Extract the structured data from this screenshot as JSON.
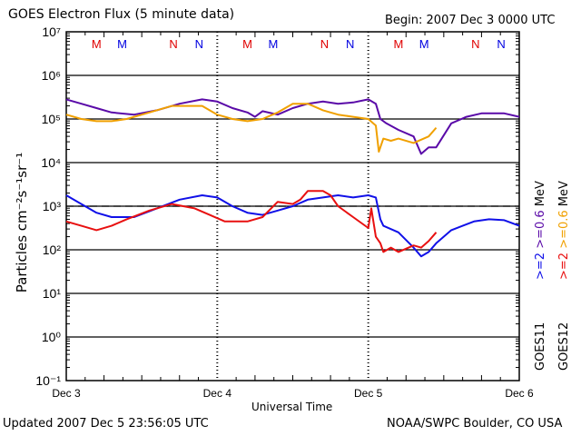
{
  "chart_data": {
    "type": "line",
    "title": "GOES Electron Flux (5 minute data)",
    "begin_label": "Begin: 2007 Dec 3 0000 UTC",
    "xlabel": "Universal Time",
    "ylabel": "Particles cm⁻²s⁻¹sr⁻¹",
    "yscale": "log",
    "ylim_exp": [
      -1,
      7
    ],
    "ytick_labels": [
      "10⁷",
      "10⁶",
      "10⁵",
      "10⁴",
      "10³",
      "10²",
      "10¹",
      "10⁰",
      "10⁻¹"
    ],
    "xlim_days": [
      0,
      3
    ],
    "xtick_labels": [
      "Dec 3",
      "Dec 4",
      "Dec 5",
      "Dec 6"
    ],
    "threshold_exp": 3,
    "grid": "horizontal at decades",
    "markers": [
      {
        "label": "M",
        "x": 0.2,
        "color": "#e00000"
      },
      {
        "label": "M",
        "x": 0.37,
        "color": "#0000e0"
      },
      {
        "label": "N",
        "x": 0.71,
        "color": "#e00000"
      },
      {
        "label": "N",
        "x": 0.88,
        "color": "#0000e0"
      },
      {
        "label": "M",
        "x": 1.2,
        "color": "#e00000"
      },
      {
        "label": "M",
        "x": 1.37,
        "color": "#0000e0"
      },
      {
        "label": "N",
        "x": 1.71,
        "color": "#e00000"
      },
      {
        "label": "N",
        "x": 1.88,
        "color": "#0000e0"
      },
      {
        "label": "M",
        "x": 2.2,
        "color": "#e00000"
      },
      {
        "label": "M",
        "x": 2.37,
        "color": "#0000e0"
      },
      {
        "label": "N",
        "x": 2.71,
        "color": "#e00000"
      },
      {
        "label": "N",
        "x": 2.88,
        "color": "#0000e0"
      }
    ],
    "series": [
      {
        "name": "GOES11 >=0.6 MeV",
        "color": "#5a0aa8",
        "x": [
          0,
          0.1,
          0.2,
          0.3,
          0.45,
          0.6,
          0.75,
          0.9,
          1.0,
          1.1,
          1.2,
          1.25,
          1.3,
          1.4,
          1.5,
          1.6,
          1.7,
          1.8,
          1.9,
          2.0,
          2.05,
          2.08,
          2.12,
          2.2,
          2.3,
          2.35,
          2.4,
          2.45,
          2.55,
          2.65,
          2.75,
          2.9,
          3.0
        ],
        "y_exp": [
          5.45,
          5.35,
          5.25,
          5.15,
          5.1,
          5.2,
          5.35,
          5.45,
          5.4,
          5.25,
          5.15,
          5.05,
          5.18,
          5.1,
          5.25,
          5.35,
          5.4,
          5.35,
          5.38,
          5.45,
          5.35,
          5.0,
          4.9,
          4.75,
          4.6,
          4.2,
          4.35,
          4.35,
          4.9,
          5.05,
          5.13,
          5.13,
          5.05
        ]
      },
      {
        "name": "GOES12 >=0.6 MeV",
        "color": "#f0a000",
        "x": [
          0,
          0.1,
          0.2,
          0.3,
          0.4,
          0.55,
          0.7,
          0.9,
          1.0,
          1.1,
          1.2,
          1.3,
          1.4,
          1.5,
          1.6,
          1.7,
          1.8,
          1.9,
          2.0,
          2.05,
          2.07,
          2.1,
          2.15,
          2.2,
          2.3,
          2.4,
          2.45
        ],
        "y_exp": [
          5.1,
          5.0,
          4.95,
          4.95,
          5.0,
          5.15,
          5.3,
          5.3,
          5.1,
          5.0,
          4.95,
          5.0,
          5.15,
          5.35,
          5.35,
          5.2,
          5.1,
          5.05,
          5.0,
          4.85,
          4.25,
          4.55,
          4.5,
          4.55,
          4.45,
          4.6,
          4.8
        ]
      },
      {
        "name": "GOES11 >=2 MeV",
        "color": "#1010e8",
        "x": [
          0,
          0.1,
          0.2,
          0.3,
          0.45,
          0.6,
          0.75,
          0.9,
          1.0,
          1.1,
          1.2,
          1.3,
          1.4,
          1.5,
          1.6,
          1.7,
          1.8,
          1.9,
          2.0,
          2.05,
          2.08,
          2.1,
          2.2,
          2.3,
          2.35,
          2.4,
          2.45,
          2.55,
          2.7,
          2.8,
          2.9,
          3.0
        ],
        "y_exp": [
          3.25,
          3.05,
          2.85,
          2.75,
          2.75,
          2.95,
          3.15,
          3.25,
          3.2,
          3.0,
          2.85,
          2.8,
          2.9,
          3.0,
          3.15,
          3.2,
          3.25,
          3.2,
          3.25,
          3.2,
          2.7,
          2.55,
          2.4,
          2.05,
          1.85,
          1.95,
          2.15,
          2.45,
          2.65,
          2.7,
          2.68,
          2.55
        ]
      },
      {
        "name": "GOES12 >=2 MeV",
        "color": "#e81010",
        "x": [
          0,
          0.1,
          0.2,
          0.3,
          0.4,
          0.55,
          0.7,
          0.85,
          0.95,
          1.05,
          1.2,
          1.3,
          1.4,
          1.5,
          1.55,
          1.6,
          1.7,
          1.75,
          1.8,
          1.9,
          2.0,
          2.02,
          2.05,
          2.08,
          2.1,
          2.15,
          2.2,
          2.3,
          2.35,
          2.4,
          2.45
        ],
        "y_exp": [
          2.65,
          2.55,
          2.45,
          2.55,
          2.7,
          2.9,
          3.05,
          2.95,
          2.8,
          2.65,
          2.65,
          2.75,
          3.1,
          3.05,
          3.15,
          3.35,
          3.35,
          3.25,
          3.0,
          2.75,
          2.5,
          2.95,
          2.3,
          2.15,
          1.95,
          2.05,
          1.95,
          2.1,
          2.05,
          2.2,
          2.4
        ]
      }
    ],
    "legend": {
      "col1": [
        {
          "text": ">=2",
          "color": "#1010e8"
        },
        {
          "text": ">=0.6",
          "color": "#5a0aa8"
        },
        {
          "text": "MeV",
          "color": "#000000"
        }
      ],
      "col2": [
        {
          "text": ">=2",
          "color": "#e81010"
        },
        {
          "text": ">=0.6",
          "color": "#f0a000"
        },
        {
          "text": "MeV",
          "color": "#000000"
        }
      ],
      "sat1": "GOES11",
      "sat2": "GOES12",
      "placement": "right"
    }
  },
  "footer": {
    "updated": "Updated 2007 Dec  5 23:56:05 UTC",
    "credit": "NOAA/SWPC Boulder, CO USA"
  }
}
